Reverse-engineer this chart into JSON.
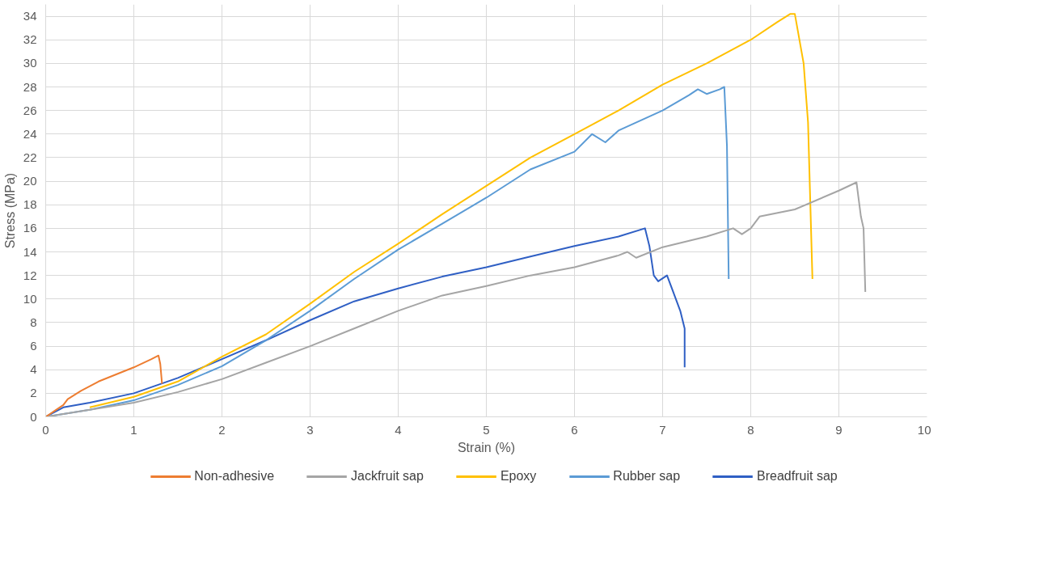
{
  "chart_data": {
    "type": "line",
    "xlabel": "Strain (%)",
    "ylabel": "Stress (MPa)",
    "xlim": [
      0,
      10
    ],
    "xticks": [
      0,
      1,
      2,
      3,
      4,
      5,
      6,
      7,
      8,
      9,
      10
    ],
    "ylim": [
      0,
      35
    ],
    "yticks": [
      0,
      2,
      4,
      6,
      8,
      10,
      12,
      14,
      16,
      18,
      20,
      22,
      24,
      26,
      28,
      30,
      32,
      34
    ],
    "grid": true,
    "legend": "bottom",
    "line_style": "solid",
    "series": [
      {
        "name": "Non-adhesive",
        "color": "#ed7d31",
        "x": [
          0,
          0.2,
          0.25,
          0.4,
          0.6,
          0.8,
          1,
          1.2,
          1.28,
          1.3,
          1.32
        ],
        "values": [
          0,
          1,
          1.5,
          2.2,
          3,
          3.6,
          4.2,
          4.9,
          5.2,
          4.5,
          2.8
        ]
      },
      {
        "name": "Jackfruit sap",
        "color": "#a5a5a5",
        "x": [
          0,
          0.5,
          1,
          1.5,
          2,
          2.5,
          3,
          3.5,
          4,
          4.5,
          5,
          5.5,
          6,
          6.5,
          6.6,
          6.7,
          7,
          7.5,
          7.8,
          7.9,
          8,
          8.1,
          8.5,
          9,
          9.2,
          9.25,
          9.28,
          9.3
        ],
        "values": [
          0,
          0.6,
          1.2,
          2.1,
          3.2,
          4.6,
          6,
          7.5,
          9,
          10.3,
          11.1,
          12,
          12.7,
          13.7,
          14,
          13.5,
          14.4,
          15.3,
          16,
          15.5,
          16,
          17,
          17.6,
          19.2,
          19.9,
          17,
          16,
          10.6
        ]
      },
      {
        "name": "Epoxy",
        "color": "#ffc000",
        "x": [
          0.5,
          1,
          1.5,
          2,
          2.5,
          3,
          3.5,
          4,
          4.5,
          5,
          5.5,
          6,
          6.5,
          7,
          7.5,
          8,
          8.3,
          8.45,
          8.5,
          8.6,
          8.65,
          8.7
        ],
        "values": [
          0.8,
          1.7,
          3,
          5.1,
          7,
          9.6,
          12.3,
          14.7,
          17.2,
          19.6,
          22,
          24,
          26,
          28.2,
          30,
          32,
          33.5,
          34.2,
          34.2,
          30,
          25,
          11.7
        ]
      },
      {
        "name": "Rubber sap",
        "color": "#5b9bd5",
        "x": [
          0,
          0.5,
          1,
          1.5,
          2,
          2.5,
          3,
          3.5,
          4,
          4.5,
          5,
          5.5,
          6,
          6.2,
          6.35,
          6.5,
          7,
          7.3,
          7.4,
          7.5,
          7.65,
          7.7,
          7.73,
          7.75
        ],
        "values": [
          0,
          0.6,
          1.4,
          2.7,
          4.3,
          6.5,
          9,
          11.7,
          14.2,
          16.4,
          18.6,
          21,
          22.5,
          24,
          23.3,
          24.3,
          26,
          27.3,
          27.8,
          27.4,
          27.8,
          28,
          23,
          11.7
        ]
      },
      {
        "name": "Breadfruit sap",
        "color": "#2f5fc4",
        "x": [
          0,
          0.2,
          0.5,
          1,
          1.5,
          2,
          2.5,
          3,
          3.5,
          4,
          4.5,
          5,
          5.5,
          6,
          6.5,
          6.8,
          6.85,
          6.9,
          6.95,
          7.05,
          7.1,
          7.2,
          7.25,
          7.25
        ],
        "values": [
          0,
          0.8,
          1.2,
          2,
          3.3,
          4.9,
          6.5,
          8.2,
          9.8,
          10.9,
          11.9,
          12.7,
          13.6,
          14.5,
          15.3,
          16,
          14.5,
          12,
          11.5,
          12,
          11,
          9,
          7.5,
          4.2
        ]
      }
    ]
  }
}
